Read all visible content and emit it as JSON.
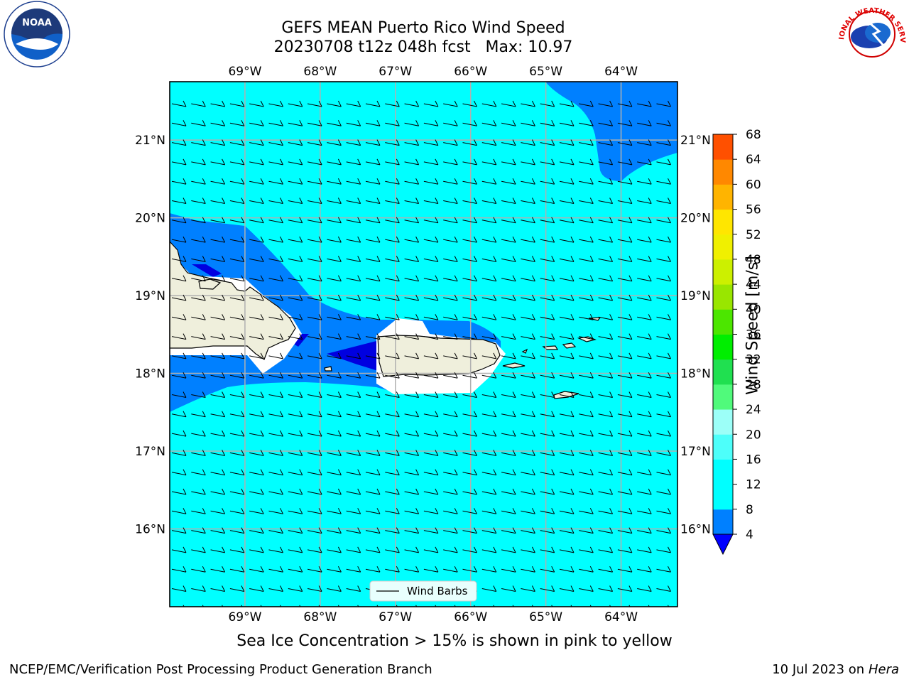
{
  "title": {
    "line1": "GEFS MEAN Puerto Rico Wind Speed",
    "line2": "20230708 t12z 048h fcst   Max: 10.97"
  },
  "subtitle": "Sea Ice Concentration > 15% is shown in pink to yellow",
  "footer": {
    "left": "NCEP/EMC/Verification Post Processing Product Generation Branch",
    "right_date": "10 Jul 2023 on ",
    "right_host": "Hera"
  },
  "logos": {
    "left": "noara-logo",
    "left_text": "NOAA",
    "right": "national-weather-service-logo",
    "right_text": "NATIONAL WEATHER SERVICE"
  },
  "map": {
    "lon_min": -70.0,
    "lon_max": -63.25,
    "lat_min": 15.0,
    "lat_max": 21.75,
    "lon_ticks": [
      -69,
      -68,
      -67,
      -66,
      -65,
      -64
    ],
    "lon_labels": [
      "69°W",
      "68°W",
      "67°W",
      "66°W",
      "65°W",
      "64°W"
    ],
    "lat_ticks": [
      16,
      17,
      18,
      19,
      20,
      21
    ],
    "lat_labels": [
      "16°N",
      "17°N",
      "18°N",
      "19°N",
      "20°N",
      "21°N"
    ],
    "legend_label": "Wind Barbs",
    "colors": {
      "ocean_main": "#00ffff",
      "band_4_8": "#0080ff",
      "band_0_4": "#0000e0",
      "land": "#efefdc"
    }
  },
  "colorbar": {
    "label": "Wind Speed [m/s]",
    "ticks": [
      4,
      8,
      12,
      16,
      20,
      24,
      28,
      32,
      36,
      40,
      44,
      48,
      52,
      56,
      60,
      64,
      68
    ],
    "colors": [
      "#0080ff",
      "#00ffff",
      "#00ffff",
      "#4dfffa",
      "#9cfff8",
      "#50fa7b",
      "#20e050",
      "#00ee00",
      "#4ce600",
      "#99e600",
      "#ccf000",
      "#f0f000",
      "#ffe600",
      "#ffb400",
      "#ff8800",
      "#ff5000",
      "#ff2000",
      "#ff0000"
    ],
    "extend_min_color": "#0000ff"
  }
}
